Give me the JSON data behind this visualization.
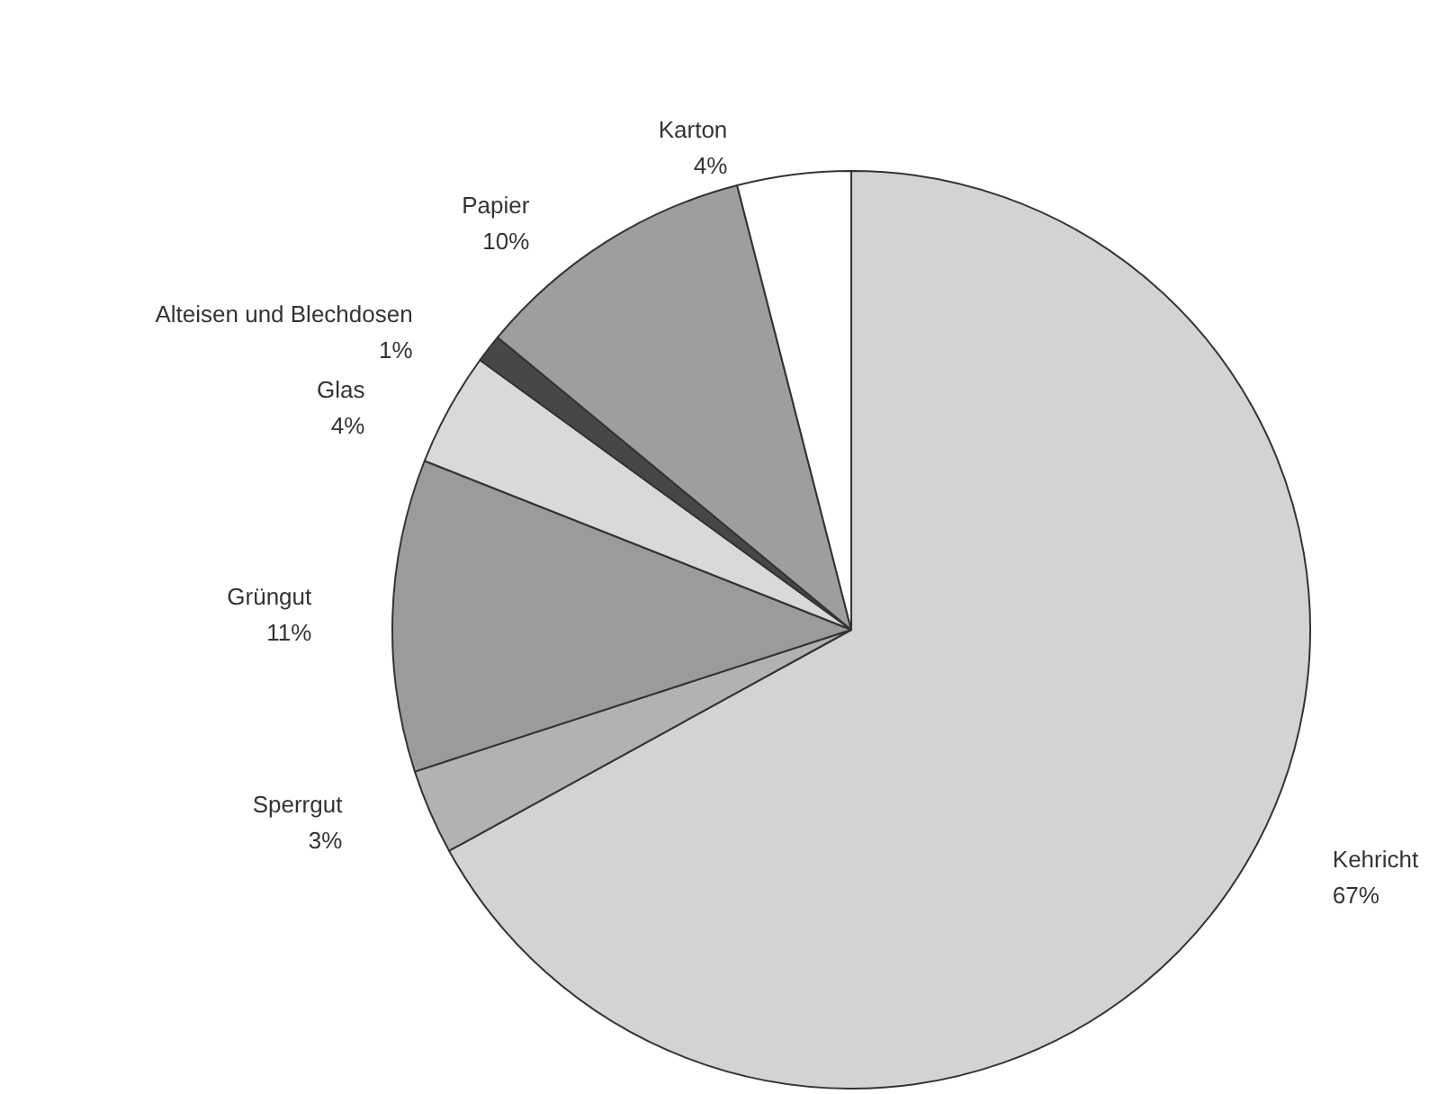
{
  "chart_data": {
    "type": "pie",
    "categories": [
      "Kehricht",
      "Sperrgut",
      "Grüngut",
      "Glas",
      "Alteisen und Blechdosen",
      "Papier",
      "Karton"
    ],
    "values": [
      67,
      3,
      11,
      4,
      1,
      10,
      4
    ],
    "value_labels": [
      "67%",
      "3%",
      "11%",
      "4%",
      "1%",
      "10%",
      "4%"
    ],
    "colors": [
      "#d3d3d3",
      "#b2b2b2",
      "#9b9b9b",
      "#d9d9d9",
      "#474747",
      "#9e9e9e",
      "#ffffff"
    ],
    "legend": false
  }
}
